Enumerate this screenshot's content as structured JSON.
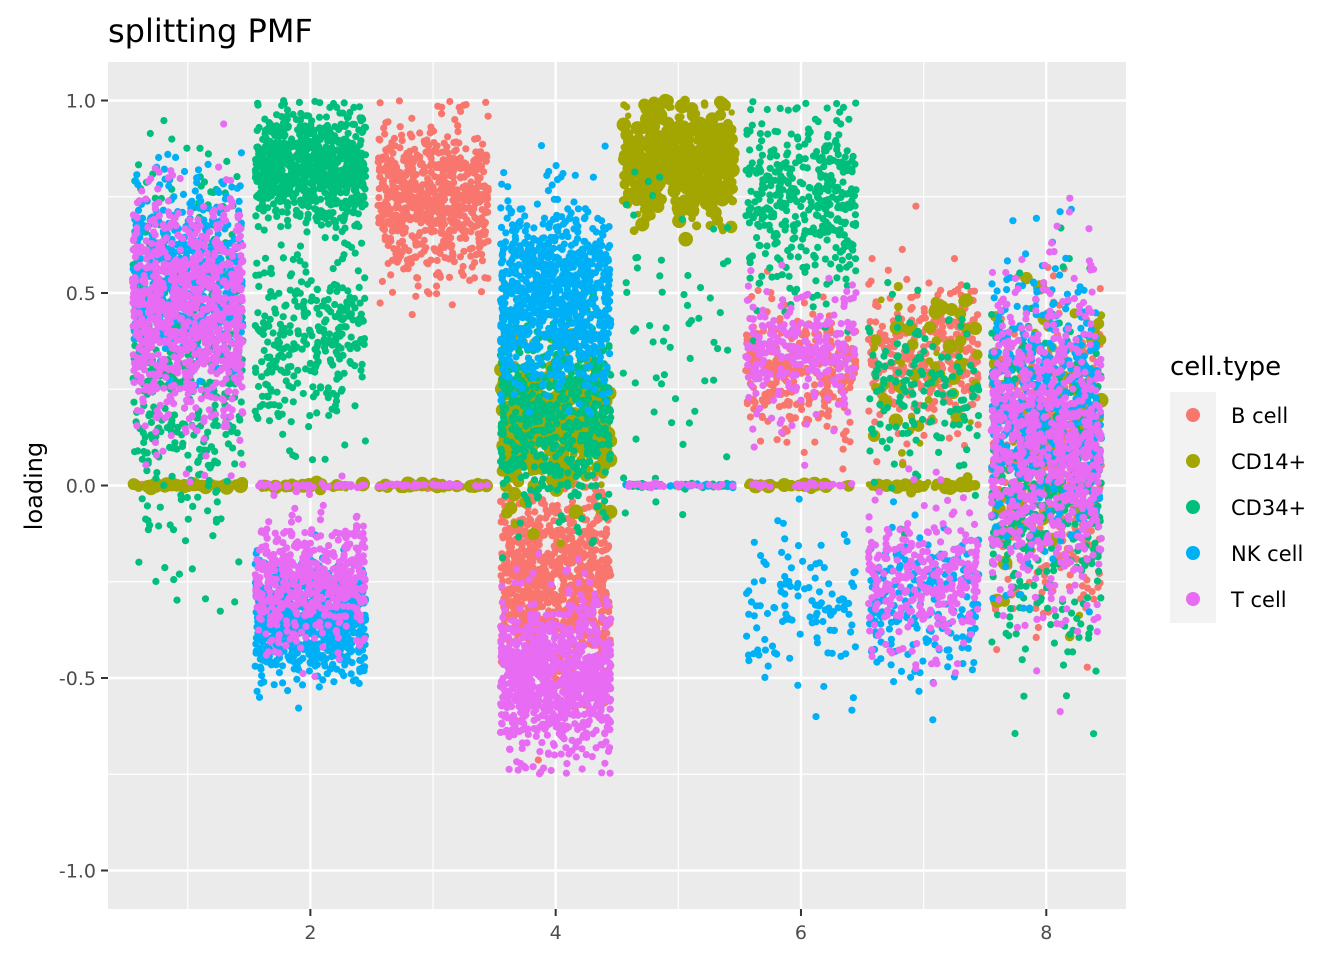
{
  "chart_data": {
    "type": "scatter",
    "title": "splitting PMF",
    "xlabel": "",
    "ylabel": "loading",
    "xlim": [
      0.35,
      8.65
    ],
    "ylim": [
      -1.1,
      1.1
    ],
    "x_ticks": [
      2,
      4,
      6,
      8
    ],
    "x_tick_labels": [
      "2",
      "4",
      "6",
      "8"
    ],
    "y_ticks": [
      -1.0,
      -0.5,
      0.0,
      0.5,
      1.0
    ],
    "y_tick_labels": [
      "-1.0",
      "-0.5",
      "0.0",
      "0.5",
      "1.0"
    ],
    "grid": true,
    "legend": {
      "title": "cell.type",
      "position": "right",
      "entries": [
        {
          "name": "B cell",
          "color": "#F8766D"
        },
        {
          "name": "CD14+",
          "color": "#A3A500"
        },
        {
          "name": "CD34+",
          "color": "#00BF7D"
        },
        {
          "name": "NK cell",
          "color": "#00B0F6"
        },
        {
          "name": "T cell",
          "color": "#E76BF3"
        }
      ]
    },
    "series": [
      {
        "name": "B cell",
        "color": "#F8766D",
        "clusters": [
          {
            "x": 3,
            "y": 0.75,
            "sd": 0.1,
            "n": 700
          },
          {
            "x": 4,
            "y": -0.25,
            "sd": 0.12,
            "n": 900
          },
          {
            "x": 6,
            "y": 0.3,
            "sd": 0.08,
            "n": 300
          },
          {
            "x": 7,
            "y": 0.35,
            "sd": 0.1,
            "n": 300
          },
          {
            "x": 8,
            "y": 0.05,
            "sd": 0.18,
            "n": 500
          },
          {
            "x": 1,
            "y": 0.0,
            "sd": 0.003,
            "n": 40
          },
          {
            "x": 3,
            "y": 0.0,
            "sd": 0.003,
            "n": 40
          }
        ]
      },
      {
        "name": "CD14+",
        "color": "#A3A500",
        "clusters": [
          {
            "x": 5,
            "y": 0.85,
            "sd": 0.07,
            "n": 500
          },
          {
            "x": 4,
            "y": 0.15,
            "sd": 0.1,
            "n": 400
          },
          {
            "x": 7,
            "y": 0.3,
            "sd": 0.12,
            "n": 60
          },
          {
            "x": 8,
            "y": 0.2,
            "sd": 0.2,
            "n": 100
          },
          {
            "x": 1,
            "y": 0.0,
            "sd": 0.003,
            "n": 60
          },
          {
            "x": 2,
            "y": 0.0,
            "sd": 0.003,
            "n": 40
          },
          {
            "x": 3,
            "y": 0.0,
            "sd": 0.003,
            "n": 40
          },
          {
            "x": 6,
            "y": 0.0,
            "sd": 0.003,
            "n": 40
          },
          {
            "x": 7,
            "y": 0.0,
            "sd": 0.003,
            "n": 40
          }
        ]
      },
      {
        "name": "CD34+",
        "color": "#00BF7D",
        "clusters": [
          {
            "x": 2,
            "y": 0.83,
            "sd": 0.07,
            "n": 800
          },
          {
            "x": 2,
            "y": 0.38,
            "sd": 0.12,
            "n": 300
          },
          {
            "x": 1,
            "y": 0.35,
            "sd": 0.22,
            "n": 500
          },
          {
            "x": 6,
            "y": 0.75,
            "sd": 0.12,
            "n": 400
          },
          {
            "x": 4,
            "y": 0.2,
            "sd": 0.12,
            "n": 600
          },
          {
            "x": 7,
            "y": 0.25,
            "sd": 0.12,
            "n": 150
          },
          {
            "x": 8,
            "y": 0.0,
            "sd": 0.22,
            "n": 400
          },
          {
            "x": 5,
            "y": 0.4,
            "sd": 0.25,
            "n": 60
          },
          {
            "x": 5,
            "y": 0.0,
            "sd": 0.003,
            "n": 40
          }
        ]
      },
      {
        "name": "NK cell",
        "color": "#00B0F6",
        "clusters": [
          {
            "x": 4,
            "y": 0.5,
            "sd": 0.12,
            "n": 900
          },
          {
            "x": 2,
            "y": -0.35,
            "sd": 0.07,
            "n": 700
          },
          {
            "x": 1,
            "y": 0.55,
            "sd": 0.12,
            "n": 500
          },
          {
            "x": 6,
            "y": -0.3,
            "sd": 0.1,
            "n": 120
          },
          {
            "x": 7,
            "y": -0.3,
            "sd": 0.1,
            "n": 200
          },
          {
            "x": 8,
            "y": 0.2,
            "sd": 0.18,
            "n": 500
          },
          {
            "x": 5,
            "y": 0.0,
            "sd": 0.003,
            "n": 30
          }
        ]
      },
      {
        "name": "T cell",
        "color": "#E76BF3",
        "clusters": [
          {
            "x": 4,
            "y": -0.5,
            "sd": 0.1,
            "n": 900
          },
          {
            "x": 1,
            "y": 0.45,
            "sd": 0.15,
            "n": 900
          },
          {
            "x": 2,
            "y": -0.25,
            "sd": 0.08,
            "n": 500
          },
          {
            "x": 6,
            "y": 0.35,
            "sd": 0.08,
            "n": 250
          },
          {
            "x": 7,
            "y": -0.25,
            "sd": 0.1,
            "n": 300
          },
          {
            "x": 8,
            "y": 0.1,
            "sd": 0.2,
            "n": 800
          },
          {
            "x": 2,
            "y": 0.0,
            "sd": 0.003,
            "n": 40
          },
          {
            "x": 3,
            "y": 0.0,
            "sd": 0.003,
            "n": 40
          },
          {
            "x": 5,
            "y": 0.0,
            "sd": 0.003,
            "n": 30
          },
          {
            "x": 6,
            "y": 0.0,
            "sd": 0.003,
            "n": 30
          }
        ]
      }
    ]
  }
}
